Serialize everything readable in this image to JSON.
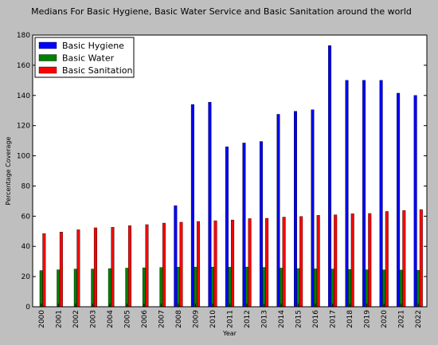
{
  "chart_data": {
    "type": "bar",
    "title": "Medians For Basic Hygiene, Basic Water Service and Basic Sanitation around the world",
    "xlabel": "Year",
    "ylabel": "Percentage Coverage",
    "ylim": [
      0,
      180
    ],
    "yticks": [
      0,
      20,
      40,
      60,
      80,
      100,
      120,
      140,
      160,
      180
    ],
    "grid": false,
    "legend_position": "top-left",
    "categories": [
      "2000",
      "2001",
      "2002",
      "2003",
      "2004",
      "2005",
      "2006",
      "2007",
      "2008",
      "2009",
      "2010",
      "2011",
      "2012",
      "2013",
      "2014",
      "2015",
      "2016",
      "2017",
      "2018",
      "2019",
      "2020",
      "2021",
      "2022"
    ],
    "series": [
      {
        "name": "Basic Hygiene",
        "color": "#0000ff",
        "values": [
          null,
          null,
          null,
          null,
          null,
          null,
          null,
          null,
          67,
          134,
          135.5,
          106,
          108.5,
          109.5,
          127.5,
          129.5,
          130.5,
          173,
          150,
          150,
          150,
          141.5,
          140
        ]
      },
      {
        "name": "Basic Water",
        "color": "#008000",
        "values": [
          24,
          24.5,
          25,
          25,
          25.3,
          25.6,
          25.8,
          26,
          26.2,
          26.3,
          26.3,
          26.2,
          26.3,
          26.1,
          25.6,
          25.3,
          25.1,
          25,
          24.7,
          24.5,
          24.4,
          24.3,
          24.2
        ]
      },
      {
        "name": "Basic Sanitation",
        "color": "#ff0000",
        "values": [
          48.5,
          49.5,
          51,
          52.3,
          52.7,
          53.7,
          54.4,
          55.4,
          56,
          56.5,
          57,
          57.5,
          58.4,
          58.6,
          59.4,
          59.8,
          60.6,
          60.9,
          61.6,
          61.8,
          63.1,
          63.8,
          64.4
        ]
      }
    ]
  }
}
